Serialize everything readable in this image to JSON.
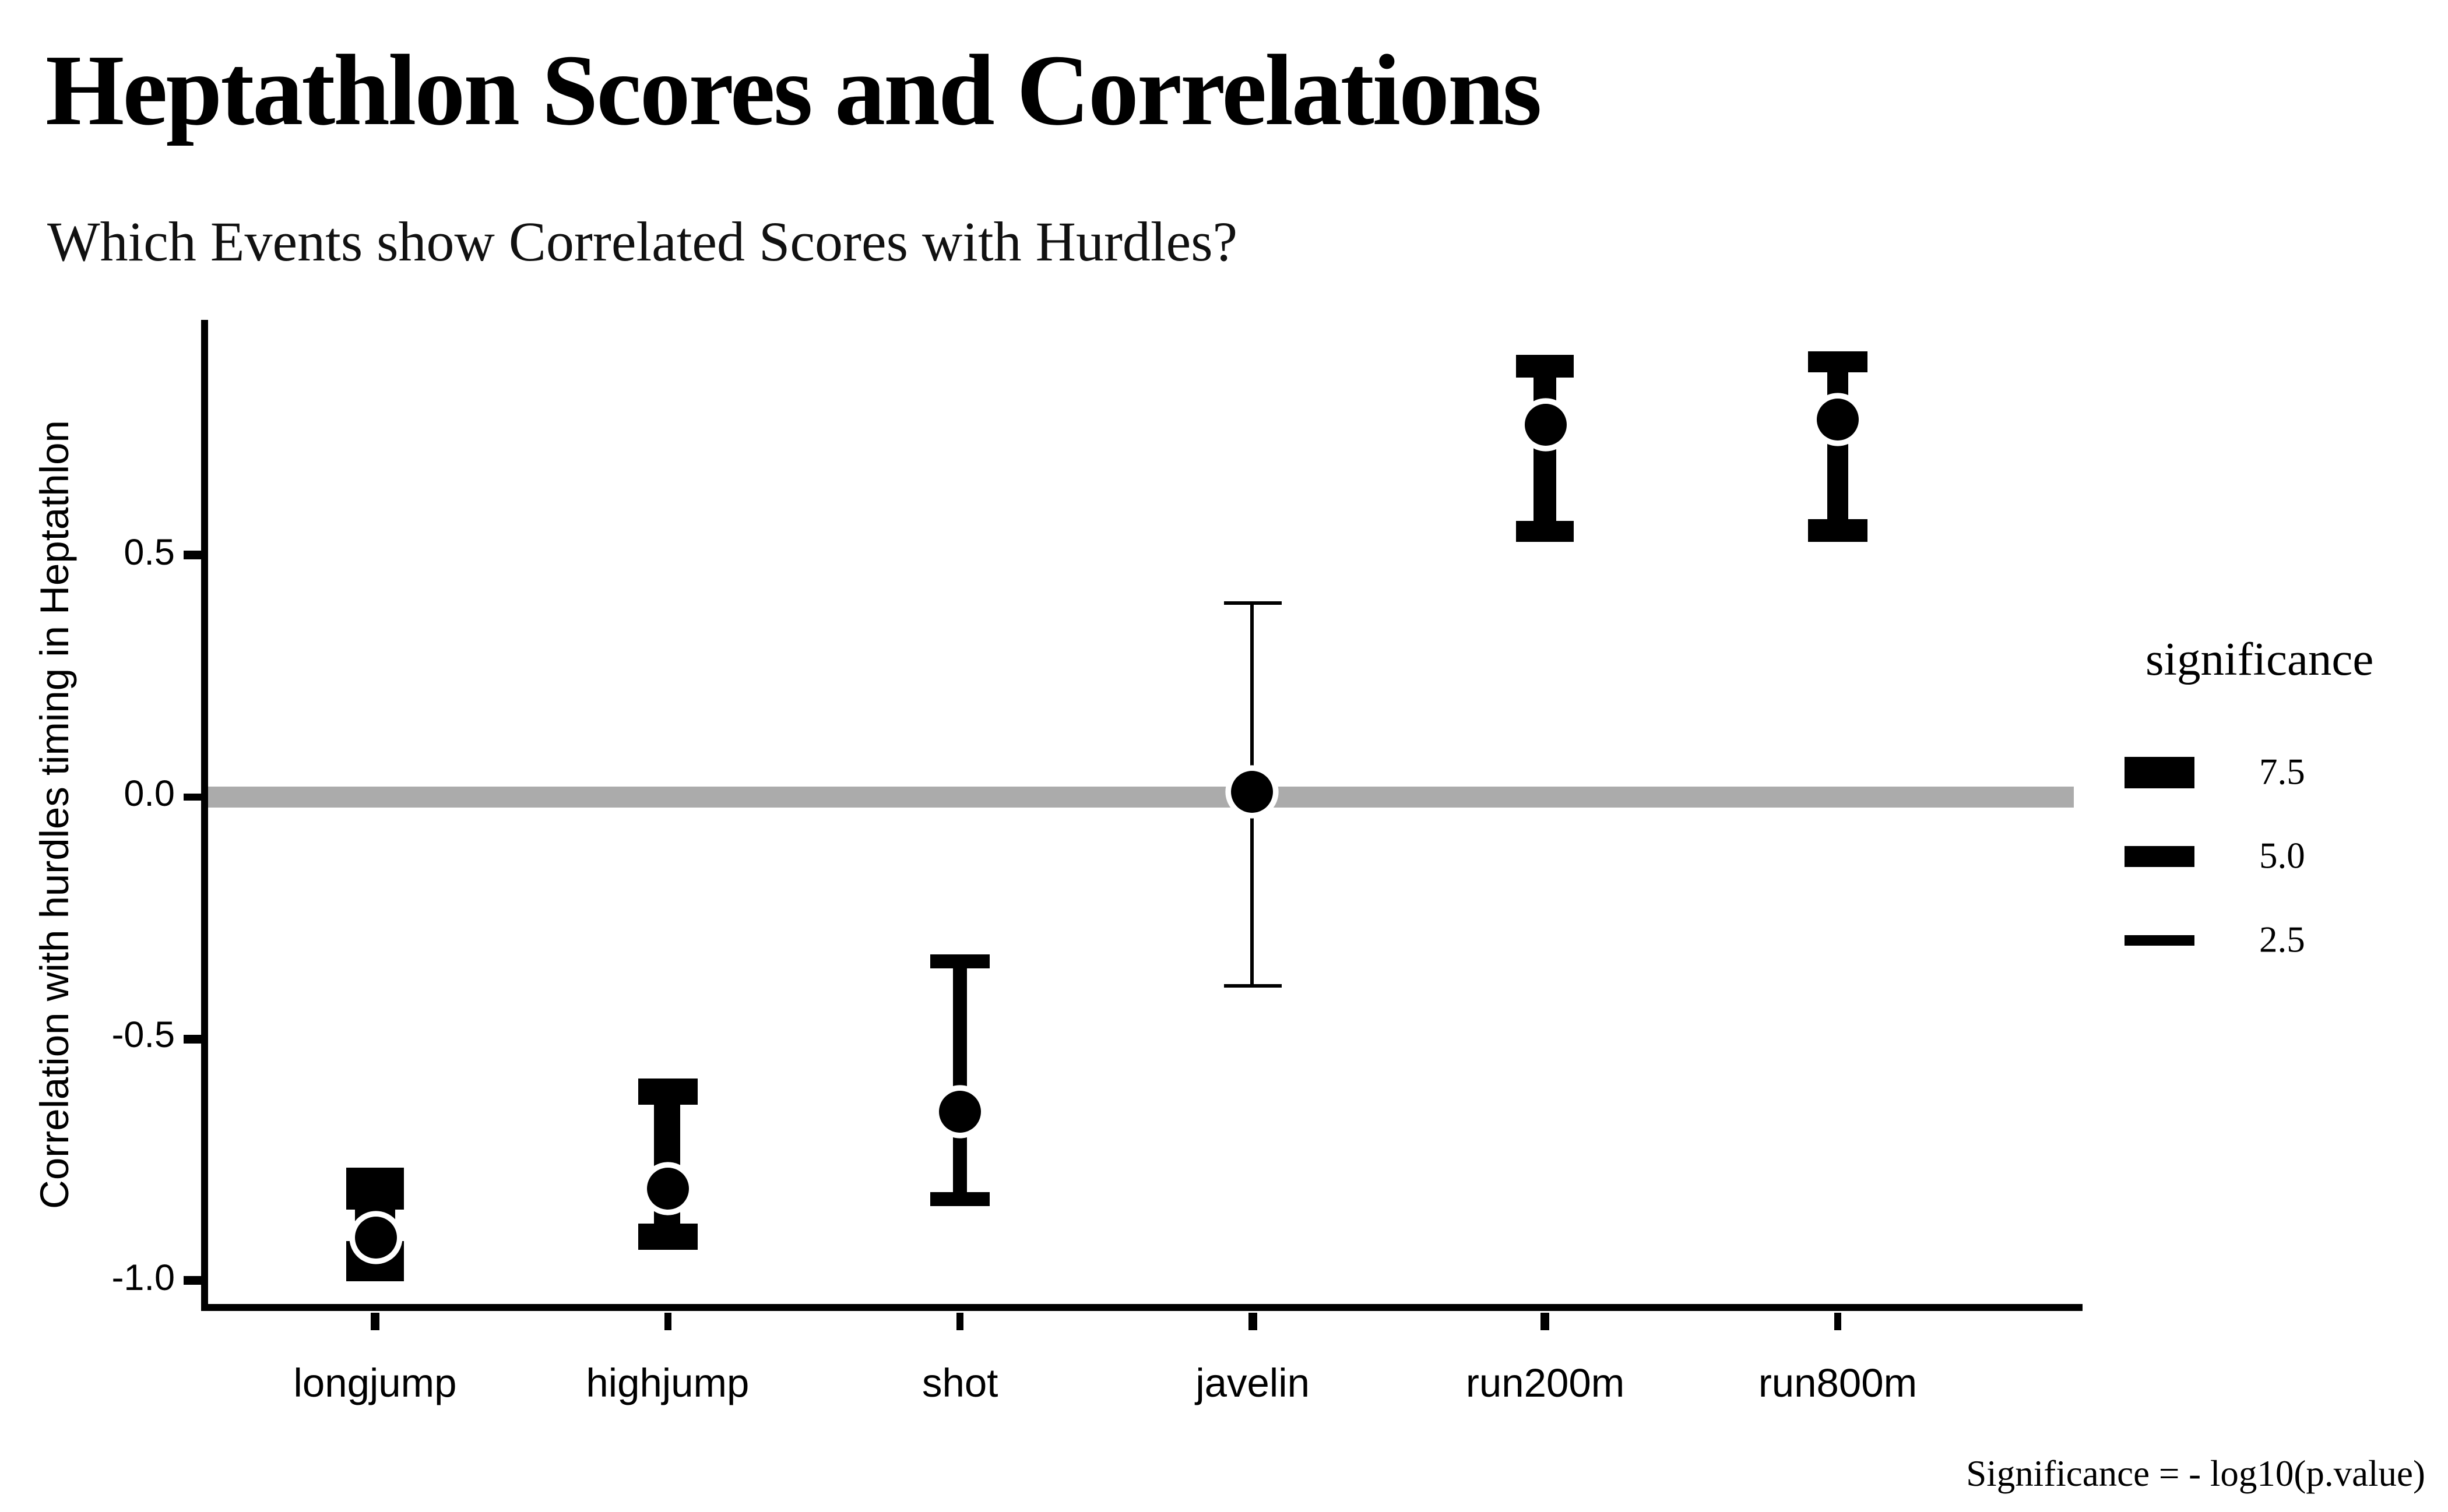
{
  "header": {
    "title": "Heptathlon Scores and Correlations",
    "subtitle": "Which Events show Correlated Scores with Hurdles?"
  },
  "caption": "Significance = - log10(p.value)",
  "legend": {
    "title": "significance",
    "entries": [
      {
        "label": "7.5",
        "size": 7.5
      },
      {
        "label": "5.0",
        "size": 5.0
      },
      {
        "label": "2.5",
        "size": 2.5
      }
    ]
  },
  "colors": {
    "foreground": "#000000",
    "zero_line": "#ABABAB",
    "background": "#FFFFFF",
    "point_outline": "#FFFFFF"
  },
  "chart_data": {
    "type": "pointrange",
    "title": "Heptathlon Scores and Correlations",
    "subtitle": "Which Events show Correlated Scores with Hurdles?",
    "xlabel": "",
    "ylabel": "Correlation with hurdles timing in Heptathlon",
    "categories": [
      "longjump",
      "highjump",
      "shot",
      "javelin",
      "run200m",
      "run800m"
    ],
    "points": [
      {
        "event": "longjump",
        "r": -0.91,
        "ci_low": -0.96,
        "ci_high": -0.81,
        "significance": 9.8
      },
      {
        "event": "highjump",
        "r": -0.81,
        "ci_low": -0.91,
        "ci_high": -0.61,
        "significance": 6.1
      },
      {
        "event": "shot",
        "r": -0.65,
        "ci_low": -0.83,
        "ci_high": -0.34,
        "significance": 3.4
      },
      {
        "event": "javelin",
        "r": 0.01,
        "ci_low": -0.39,
        "ci_high": 0.4,
        "significance": 0.01
      },
      {
        "event": "run200m",
        "r": 0.77,
        "ci_low": 0.55,
        "ci_high": 0.89,
        "significance": 5.2
      },
      {
        "event": "run800m",
        "r": 0.78,
        "ci_low": 0.55,
        "ci_high": 0.9,
        "significance": 5.3
      }
    ],
    "reference_line_y": 0.0,
    "yticks": [
      {
        "value": 0.5,
        "label": "0.5"
      },
      {
        "value": 0.0,
        "label": "0.0"
      },
      {
        "value": -0.5,
        "label": "-0.5"
      },
      {
        "value": -1.0,
        "label": "-1.0"
      }
    ],
    "ylim": [
      -1.06,
      0.99
    ],
    "grid": false,
    "legend_position": "right",
    "size_encoding": "line thickness = significance"
  }
}
